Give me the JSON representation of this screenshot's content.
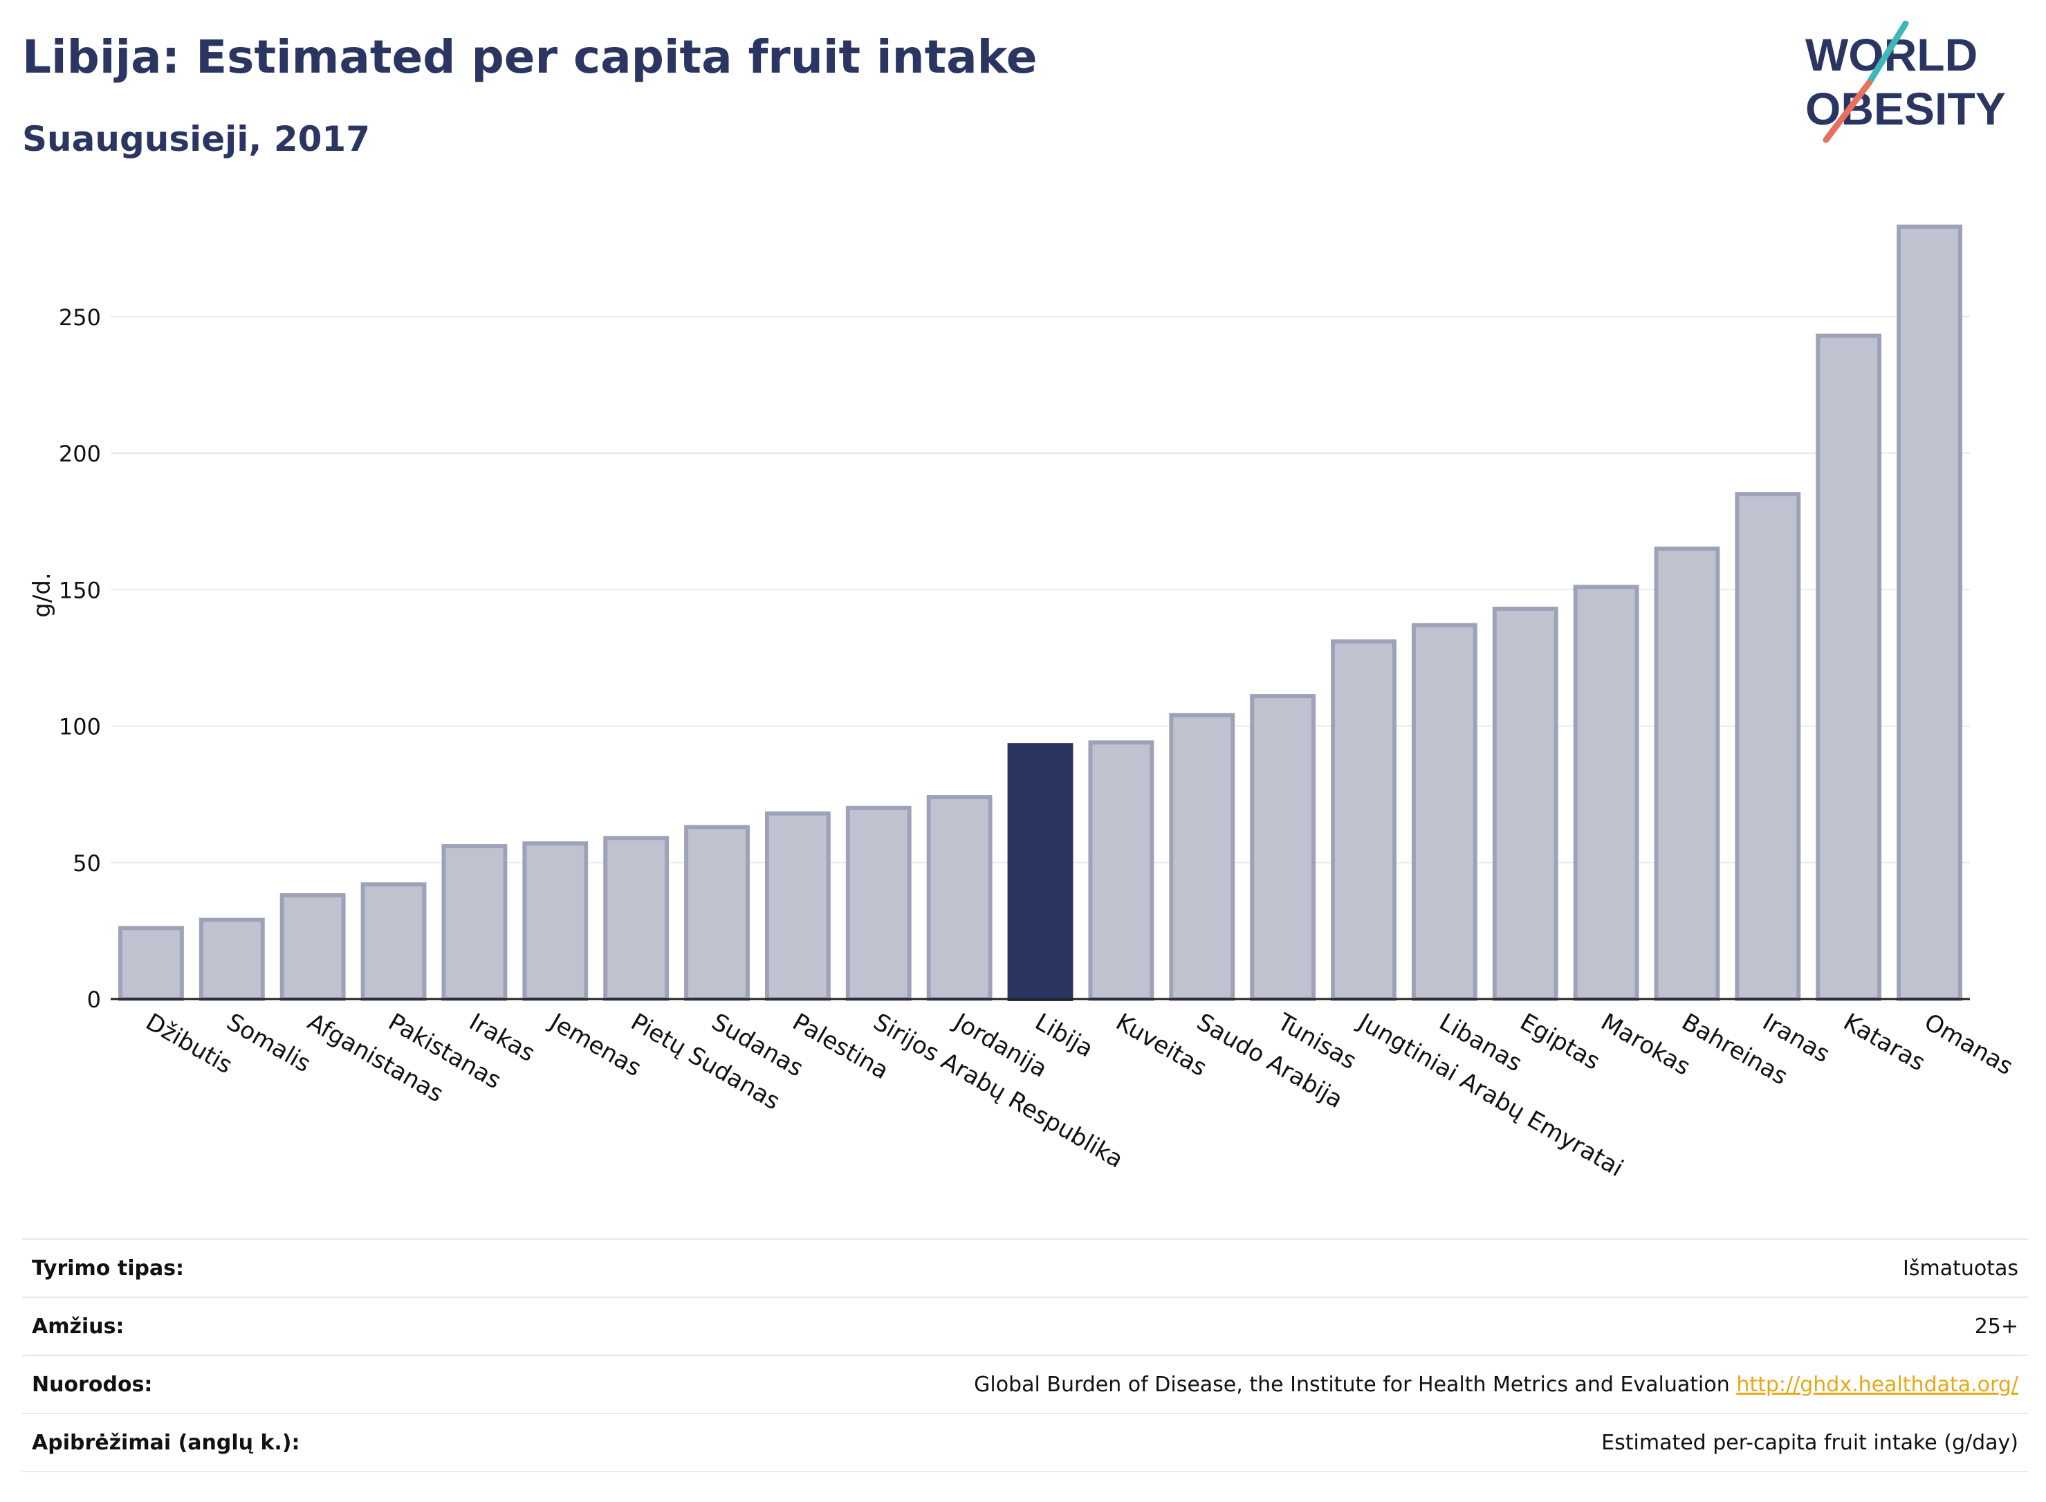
{
  "title": "Libija: Estimated per capita fruit intake",
  "subtitle": "Suaugusieji, 2017",
  "logo": {
    "line1": "WORLD",
    "line2": "OBESITY"
  },
  "colors": {
    "highlight": "#2b3562",
    "bar_fill": "#c0c3cf",
    "bar_stroke": "#9da2b8",
    "grid": "#e8eaef",
    "accent_teal": "#3fb6b8",
    "accent_red": "#e8705c"
  },
  "chart_data": {
    "type": "bar",
    "ylabel": "g/d.",
    "ylim": [
      0,
      290
    ],
    "yticks": [
      0,
      50,
      100,
      150,
      200,
      250
    ],
    "highlight": "Libija",
    "categories": [
      "Džibutis",
      "Somalis",
      "Afganistanas",
      "Pakistanas",
      "Irakas",
      "Jemenas",
      "Pietų Sudanas",
      "Sudanas",
      "Palestina",
      "Sirijos Arabų Respublika",
      "Jordanija",
      "Libija",
      "Kuveitas",
      "Saudo Arabija",
      "Tunisas",
      "Jungtiniai Arabų Emyratai",
      "Libanas",
      "Egiptas",
      "Marokas",
      "Bahreinas",
      "Iranas",
      "Kataras",
      "Omanas"
    ],
    "values": [
      26,
      29,
      38,
      42,
      56,
      57,
      59,
      63,
      68,
      70,
      74,
      93,
      94,
      104,
      111,
      131,
      137,
      143,
      151,
      165,
      185,
      243,
      283
    ]
  },
  "meta": [
    {
      "label": "Tyrimo tipas:",
      "value": "Išmatuotas"
    },
    {
      "label": "Amžius:",
      "value": "25+"
    },
    {
      "label": "Nuorodos:",
      "value": "Global Burden of Disease, the Institute for Health Metrics and Evaluation",
      "link": "http://ghdx.healthdata.org/"
    },
    {
      "label": "Apibrėžimai (anglų k.):",
      "value": "Estimated per-capita fruit intake (g/day)"
    }
  ]
}
